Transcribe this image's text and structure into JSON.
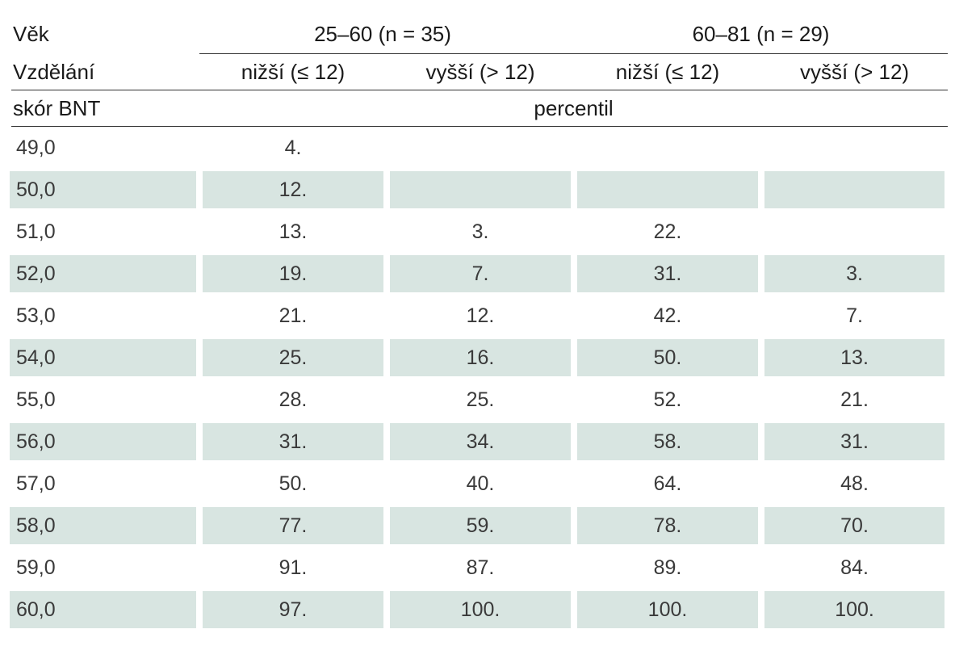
{
  "header": {
    "age_label": "Věk",
    "age_groups": [
      "25–60 (n = 35)",
      "60–81 (n = 29)"
    ],
    "education_label": "Vzdělání",
    "education_levels": [
      "nižší (≤ 12)",
      "vyšší (> 12)",
      "nižší (≤ 12)",
      "vyšší (> 12)"
    ],
    "score_label": "skór BNT",
    "percentile_label": "percentil"
  },
  "rows": [
    {
      "score": "49,0",
      "values": [
        "4.",
        "",
        "",
        ""
      ],
      "shaded": false
    },
    {
      "score": "50,0",
      "values": [
        "12.",
        "",
        "",
        ""
      ],
      "shaded": true
    },
    {
      "score": "51,0",
      "values": [
        "13.",
        "3.",
        "22.",
        ""
      ],
      "shaded": false
    },
    {
      "score": "52,0",
      "values": [
        "19.",
        "7.",
        "31.",
        "3."
      ],
      "shaded": true
    },
    {
      "score": "53,0",
      "values": [
        "21.",
        "12.",
        "42.",
        "7."
      ],
      "shaded": false
    },
    {
      "score": "54,0",
      "values": [
        "25.",
        "16.",
        "50.",
        "13."
      ],
      "shaded": true
    },
    {
      "score": "55,0",
      "values": [
        "28.",
        "25.",
        "52.",
        "21."
      ],
      "shaded": false
    },
    {
      "score": "56,0",
      "values": [
        "31.",
        "34.",
        "58.",
        "31."
      ],
      "shaded": true
    },
    {
      "score": "57,0",
      "values": [
        "50.",
        "40.",
        "64.",
        "48."
      ],
      "shaded": false
    },
    {
      "score": "58,0",
      "values": [
        "77.",
        "59.",
        "78.",
        "70."
      ],
      "shaded": true
    },
    {
      "score": "59,0",
      "values": [
        "91.",
        "87.",
        "89.",
        "84."
      ],
      "shaded": false
    },
    {
      "score": "60,0",
      "values": [
        "97.",
        "100.",
        "100.",
        "100."
      ],
      "shaded": true
    }
  ],
  "colors": {
    "row_shade": "#d8e5e1",
    "rule": "#333333"
  }
}
